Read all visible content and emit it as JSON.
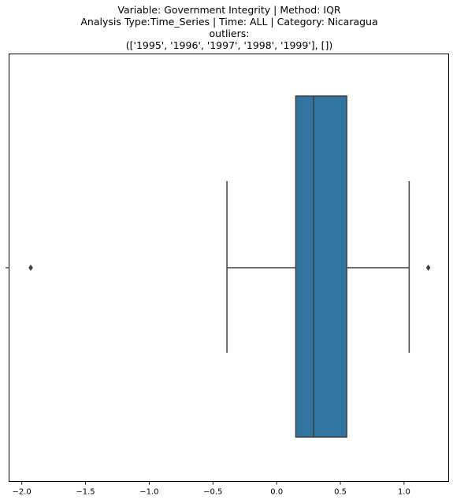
{
  "chart_data": {
    "type": "box",
    "title_lines": [
      "Variable: Government Integrity | Method: IQR",
      "Analysis Type:Time_Series | Time: ALL | Category: Nicaragua",
      "outliers:",
      "(['1995', '1996', '1997', '1998', '1999'], [])"
    ],
    "xlabel": "",
    "ylabel": "",
    "xlim": [
      -2.1,
      1.35
    ],
    "x_ticks": [
      -2.0,
      -1.5,
      -1.0,
      -0.5,
      0.0,
      0.5,
      1.0
    ],
    "x_tick_labels": [
      "−2.0",
      "−1.5",
      "−1.0",
      "−0.5",
      "0.0",
      "0.5",
      "1.0"
    ],
    "box": {
      "whisker_low": -0.39,
      "q1": 0.15,
      "median": 0.29,
      "q3": 0.55,
      "whisker_high": 1.04,
      "fliers": [
        -1.93,
        1.19
      ],
      "color": "#3274a1",
      "line_color": "#3f3f3f"
    },
    "grid": false
  }
}
